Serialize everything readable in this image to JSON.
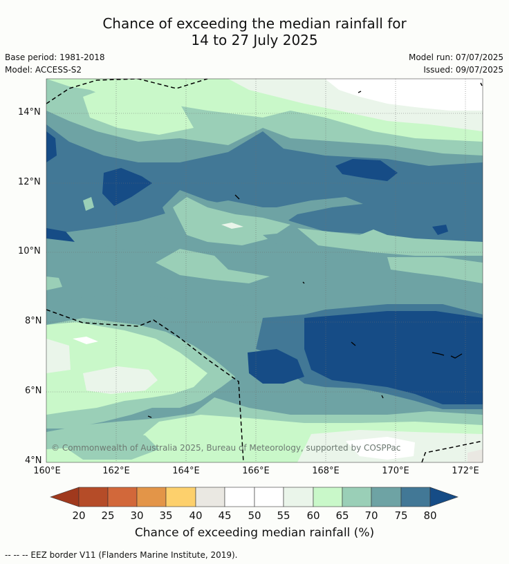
{
  "title_line1": "Chance of exceeding the median rainfall for",
  "title_line2": "14 to 27 July 2025",
  "base_period": "Base period: 1981-2018",
  "model": "Model: ACCESS-S2",
  "model_run": "Model run: 07/07/2025",
  "issued": "Issued: 09/07/2025",
  "y_labels": [
    "14°N",
    "12°N",
    "10°N",
    "8°N",
    "6°N",
    "4°N"
  ],
  "x_labels": [
    "160°E",
    "162°E",
    "164°E",
    "166°E",
    "168°E",
    "170°E",
    "172°E"
  ],
  "copyright": "© Commonwealth of Australia 2025, Bureau of Meteorology, supported by COSPPac",
  "colorbar": {
    "ticks": [
      "20",
      "25",
      "30",
      "35",
      "40",
      "45",
      "50",
      "55",
      "60",
      "65",
      "70",
      "75",
      "80"
    ],
    "label": "Chance of exceeding median rainfall (%)",
    "colors": [
      "#a0391d",
      "#b54c28",
      "#d2683a",
      "#e39548",
      "#fdd06c",
      "#eae8e2",
      "#ffffff",
      "#ffffff",
      "#eaf5ea",
      "#c9f8c9",
      "#9acfb7",
      "#6ea3a4",
      "#427896",
      "#164c86"
    ]
  },
  "legend_line": "--  --  -- EEZ border V11 (Flanders Marine Institute, 2019)."
}
